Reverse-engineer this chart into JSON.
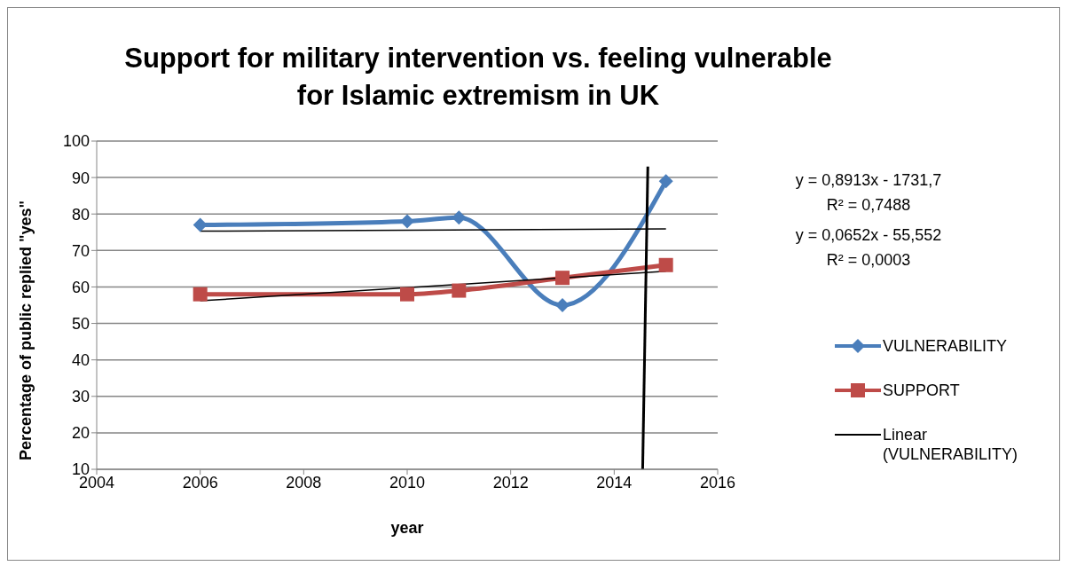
{
  "chart_data": {
    "type": "line",
    "title": "Support for military intervention vs. feeling vulnerable for Islamic extremism in UK",
    "xlabel": "year",
    "ylabel": "Percentage of public replied \"yes\"",
    "x": [
      2006,
      2010,
      2011,
      2013,
      2015
    ],
    "series": [
      {
        "name": "VULNERABILITY",
        "color": "#4a7ebb",
        "values": [
          77,
          78,
          79,
          55,
          89
        ],
        "marker": "diamond"
      },
      {
        "name": "SUPPORT",
        "color": "#be4b48",
        "values": [
          58,
          58,
          59,
          62.5,
          66
        ],
        "marker": "square"
      },
      {
        "name": "Linear (VULNERABILITY)",
        "color": "#000000",
        "x": [
          2006,
          2015
        ],
        "values": [
          75.3,
          75.9
        ],
        "marker": "none"
      },
      {
        "color": "#000000",
        "x": [
          2006,
          2015
        ],
        "values": [
          56.2,
          64.3
        ],
        "marker": "none"
      },
      {
        "color": "#000000",
        "x": [
          2014.55,
          2014.65
        ],
        "values": [
          10,
          93
        ],
        "marker": "none"
      }
    ],
    "xlim": [
      2004,
      2016
    ],
    "xticks": [
      2004,
      2006,
      2008,
      2010,
      2012,
      2014,
      2016
    ],
    "ylim": [
      10,
      100
    ],
    "yticks": [
      10,
      20,
      30,
      40,
      50,
      60,
      70,
      80,
      90,
      100
    ],
    "grid": "y",
    "legend": "right",
    "annotations": [
      "y = 0,8913x - 1731,7\nR² = 0,7488",
      "y = 0,0652x - 55,552\nR² = 0,0003"
    ]
  }
}
